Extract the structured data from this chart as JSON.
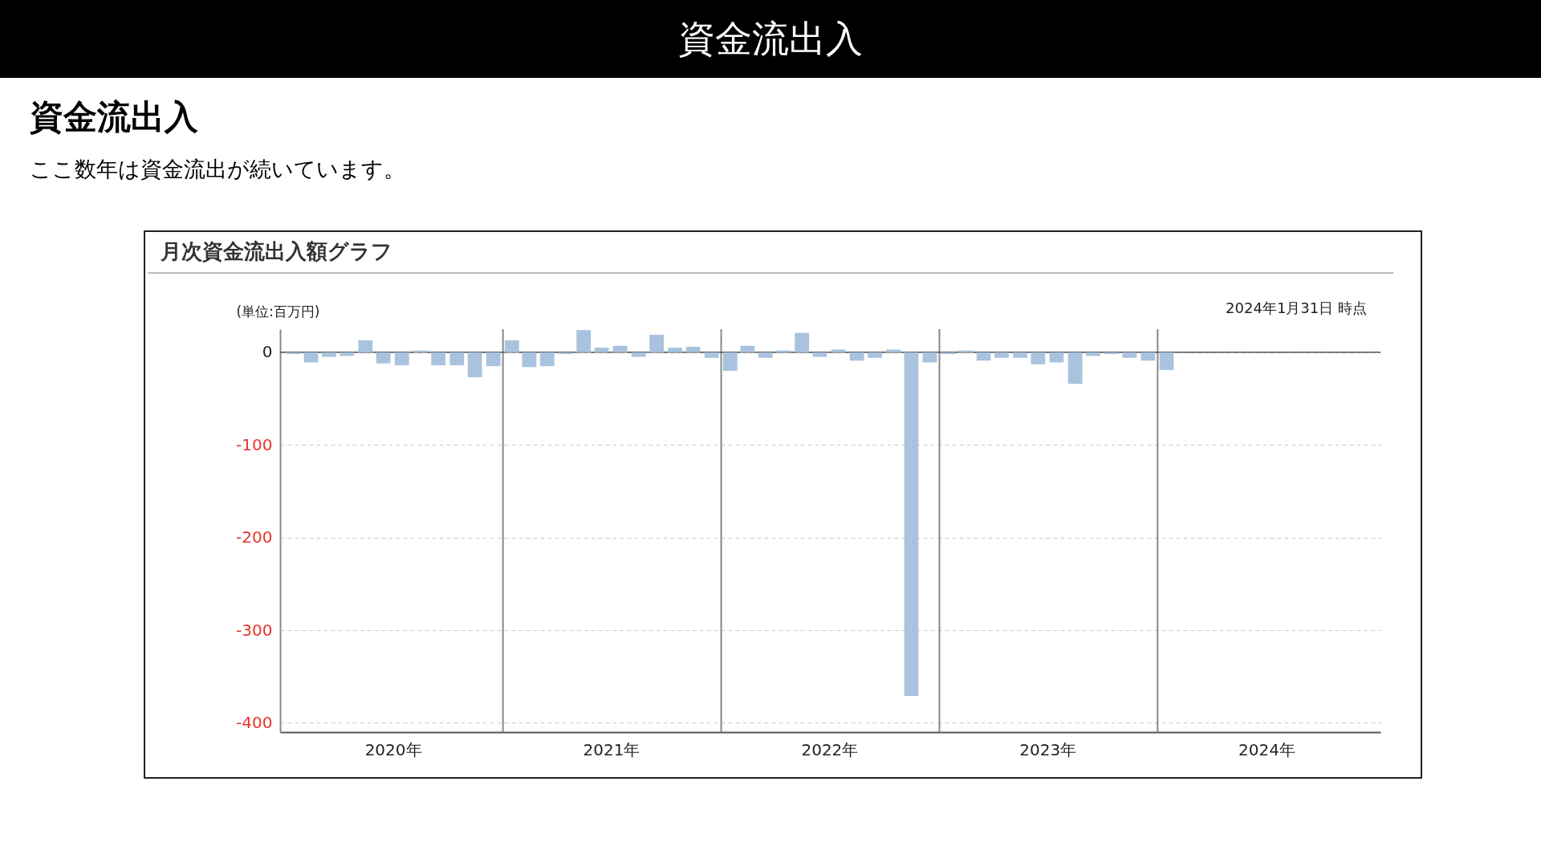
{
  "chart_data": {
    "type": "bar",
    "title": "資金流出入",
    "subtitle": "ここ数年は資金流出が続いています。",
    "annotations": [
      "資金流出入",
      "月次資金流出入額グラフ",
      "2024年1月31日 時点"
    ],
    "ylabel": "(単位:百万円)",
    "x": [
      "2020-01-16",
      "2020-02-15",
      "2020-03-16",
      "2020-04-15",
      "2020-05-16",
      "2020-06-15",
      "2020-07-16",
      "2020-08-16",
      "2020-09-15",
      "2020-10-16",
      "2020-11-15",
      "2020-12-16",
      "2021-01-16",
      "2021-02-14",
      "2021-03-16",
      "2021-04-15",
      "2021-05-16",
      "2021-06-15",
      "2021-07-16",
      "2021-08-16",
      "2021-09-15",
      "2021-10-16",
      "2021-11-15",
      "2021-12-16",
      "2022-01-16",
      "2022-02-14",
      "2022-03-16",
      "2022-04-15",
      "2022-05-16",
      "2022-06-15",
      "2022-07-16",
      "2022-08-16",
      "2022-09-15",
      "2022-10-16",
      "2022-11-15",
      "2022-12-16",
      "2023-01-16",
      "2023-02-14",
      "2023-03-16",
      "2023-04-15",
      "2023-05-16",
      "2023-06-15",
      "2023-07-16",
      "2023-08-16",
      "2023-09-15",
      "2023-10-16",
      "2023-11-15",
      "2023-12-16",
      "2024-01-16"
    ],
    "values": [
      -2,
      -11,
      -5,
      -4,
      13,
      -12,
      -14,
      2,
      -14,
      -14,
      -27,
      -15,
      13,
      -16,
      -15,
      -2,
      24,
      5,
      7,
      -5,
      19,
      5,
      6,
      -6,
      -20,
      7,
      -6,
      2,
      21,
      -5,
      3,
      -9,
      -6,
      3,
      -371,
      -11,
      -2,
      2,
      -9,
      -6,
      -6,
      -13,
      -11,
      -34,
      -4,
      -2,
      -6,
      -9,
      -19
    ],
    "color": "#a9c3de",
    "xlim": [
      "2020-01",
      "2025-01"
    ],
    "xticks": [
      {
        "value": "2020-07",
        "label": "2020年"
      },
      {
        "value": "2021-07",
        "label": "2021年"
      },
      {
        "value": "2022-07",
        "label": "2022年"
      },
      {
        "value": "2023-07",
        "label": "2023年"
      },
      {
        "value": "2024-07",
        "label": "2024年"
      }
    ],
    "ylim": [
      -410,
      25
    ],
    "yticks": [
      0,
      -100,
      -200,
      -300,
      -400
    ],
    "grid": "y",
    "ref_lines": [
      {
        "axis": "y",
        "value": 0,
        "color": "#555555"
      },
      {
        "axis": "x",
        "value": "2021-01",
        "color": "#888888"
      },
      {
        "axis": "x",
        "value": "2022-01",
        "color": "#888888"
      },
      {
        "axis": "x",
        "value": "2023-01",
        "color": "#888888"
      },
      {
        "axis": "x",
        "value": "2024-01",
        "color": "#888888"
      }
    ]
  }
}
